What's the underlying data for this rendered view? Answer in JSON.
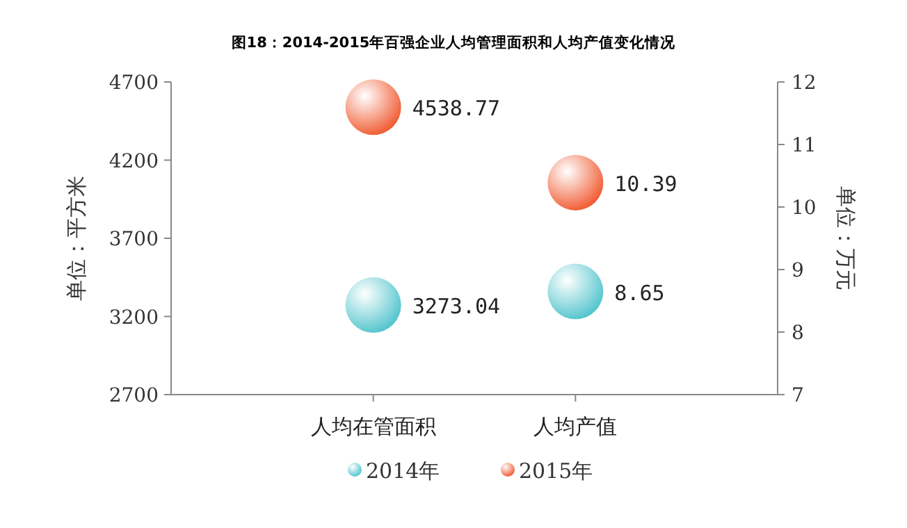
{
  "chart_data": {
    "type": "scatter",
    "title": "图18：2014-2015年百强企业人均管理面积和人均产值变化情况",
    "categories": [
      "人均在管面积",
      "人均产值"
    ],
    "series": [
      {
        "name": "2014年",
        "color": "#4fc3cc",
        "values": [
          3273.04,
          null
        ]
      },
      {
        "name": "2015年",
        "color": "#f0582e",
        "values": [
          4538.77,
          null
        ]
      },
      {
        "color": "#4fc3cc",
        "values": [
          null,
          8.65
        ],
        "axis": "y2"
      },
      {
        "color": "#f0582e",
        "values": [
          null,
          10.39
        ],
        "axis": "y2"
      }
    ],
    "ylabel": "单位：平方米",
    "y2label": "单位：万元",
    "ylim": [
      2700,
      4700
    ],
    "yticks": [
      2700,
      3200,
      3700,
      4200,
      4700
    ],
    "y2lim": [
      7,
      12
    ],
    "y2ticks": [
      7,
      8,
      9,
      10,
      11,
      12
    ],
    "data_labels": true,
    "legend": "bottom",
    "marker": "circle",
    "grid": false
  }
}
